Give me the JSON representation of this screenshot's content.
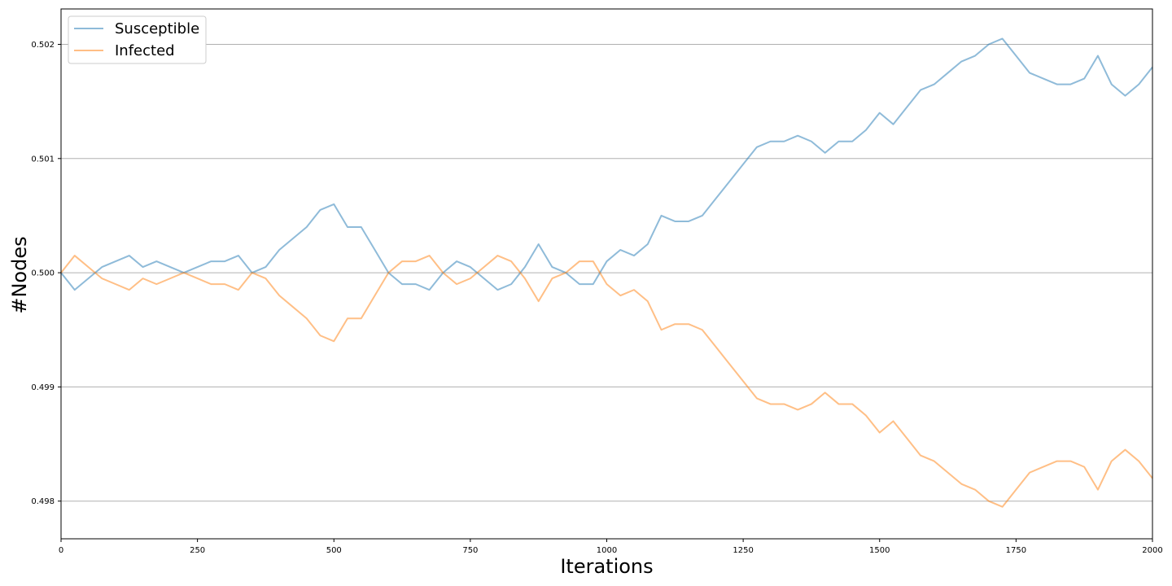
{
  "chart_data": {
    "type": "line",
    "title": "",
    "xlabel": "Iterations",
    "ylabel": "#Nodes",
    "xlim": [
      0,
      2000
    ],
    "ylim": [
      0.49767,
      0.50231
    ],
    "x_ticks": [
      0,
      250,
      500,
      750,
      1000,
      1250,
      1500,
      1750,
      2000
    ],
    "x_tick_labels": [
      "0",
      "250",
      "500",
      "750",
      "1000",
      "1250",
      "1500",
      "1750",
      "2000"
    ],
    "y_ticks": [
      0.498,
      0.499,
      0.5,
      0.501,
      0.502
    ],
    "y_tick_labels": [
      "0.498",
      "0.499",
      "0.500",
      "0.501",
      "0.502"
    ],
    "grid": "horizontal",
    "legend_position": "top-left",
    "x": [
      0,
      25,
      50,
      75,
      100,
      125,
      150,
      175,
      200,
      225,
      250,
      275,
      300,
      325,
      350,
      375,
      400,
      425,
      450,
      475,
      500,
      525,
      550,
      575,
      600,
      625,
      650,
      675,
      700,
      725,
      750,
      775,
      800,
      825,
      850,
      875,
      900,
      925,
      950,
      975,
      1000,
      1025,
      1050,
      1075,
      1100,
      1125,
      1150,
      1175,
      1200,
      1225,
      1250,
      1275,
      1300,
      1325,
      1350,
      1375,
      1400,
      1425,
      1450,
      1475,
      1500,
      1525,
      1550,
      1575,
      1600,
      1625,
      1650,
      1675,
      1700,
      1725,
      1750,
      1775,
      1800,
      1825,
      1850,
      1875,
      1900,
      1925,
      1950,
      1975,
      2000
    ],
    "series": [
      {
        "name": "Susceptible",
        "color": "#1f77b4",
        "values": [
          0.5,
          0.49985,
          0.49995,
          0.50005,
          0.5001,
          0.50015,
          0.50005,
          0.5001,
          0.50005,
          0.5,
          0.50005,
          0.5001,
          0.5001,
          0.50015,
          0.5,
          0.50005,
          0.5002,
          0.5003,
          0.5004,
          0.50055,
          0.5006,
          0.5004,
          0.5004,
          0.5002,
          0.5,
          0.4999,
          0.4999,
          0.49985,
          0.5,
          0.5001,
          0.50005,
          0.49995,
          0.49985,
          0.4999,
          0.50005,
          0.50025,
          0.50005,
          0.5,
          0.4999,
          0.4999,
          0.5001,
          0.5002,
          0.50015,
          0.50025,
          0.5005,
          0.50045,
          0.50045,
          0.5005,
          0.50065,
          0.5008,
          0.50095,
          0.5011,
          0.50115,
          0.50115,
          0.5012,
          0.50115,
          0.50105,
          0.50115,
          0.50115,
          0.50125,
          0.5014,
          0.5013,
          0.50145,
          0.5016,
          0.50165,
          0.50175,
          0.50185,
          0.5019,
          0.502,
          0.50205,
          0.5019,
          0.50175,
          0.5017,
          0.50165,
          0.50165,
          0.5017,
          0.5019,
          0.50165,
          0.50155,
          0.50165,
          0.5018
        ]
      },
      {
        "name": "Infected",
        "color": "#ff7f0e",
        "values": [
          0.5,
          0.50015,
          0.50005,
          0.49995,
          0.4999,
          0.49985,
          0.49995,
          0.4999,
          0.49995,
          0.5,
          0.49995,
          0.4999,
          0.4999,
          0.49985,
          0.5,
          0.49995,
          0.4998,
          0.4997,
          0.4996,
          0.49945,
          0.4994,
          0.4996,
          0.4996,
          0.4998,
          0.5,
          0.5001,
          0.5001,
          0.50015,
          0.5,
          0.4999,
          0.49995,
          0.50005,
          0.50015,
          0.5001,
          0.49995,
          0.49975,
          0.49995,
          0.5,
          0.5001,
          0.5001,
          0.4999,
          0.4998,
          0.49985,
          0.49975,
          0.4995,
          0.49955,
          0.49955,
          0.4995,
          0.49935,
          0.4992,
          0.49905,
          0.4989,
          0.49885,
          0.49885,
          0.4988,
          0.49885,
          0.49895,
          0.49885,
          0.49885,
          0.49875,
          0.4986,
          0.4987,
          0.49855,
          0.4984,
          0.49835,
          0.49825,
          0.49815,
          0.4981,
          0.498,
          0.49795,
          0.4981,
          0.49825,
          0.4983,
          0.49835,
          0.49835,
          0.4983,
          0.4981,
          0.49835,
          0.49845,
          0.49835,
          0.4982
        ]
      }
    ]
  }
}
